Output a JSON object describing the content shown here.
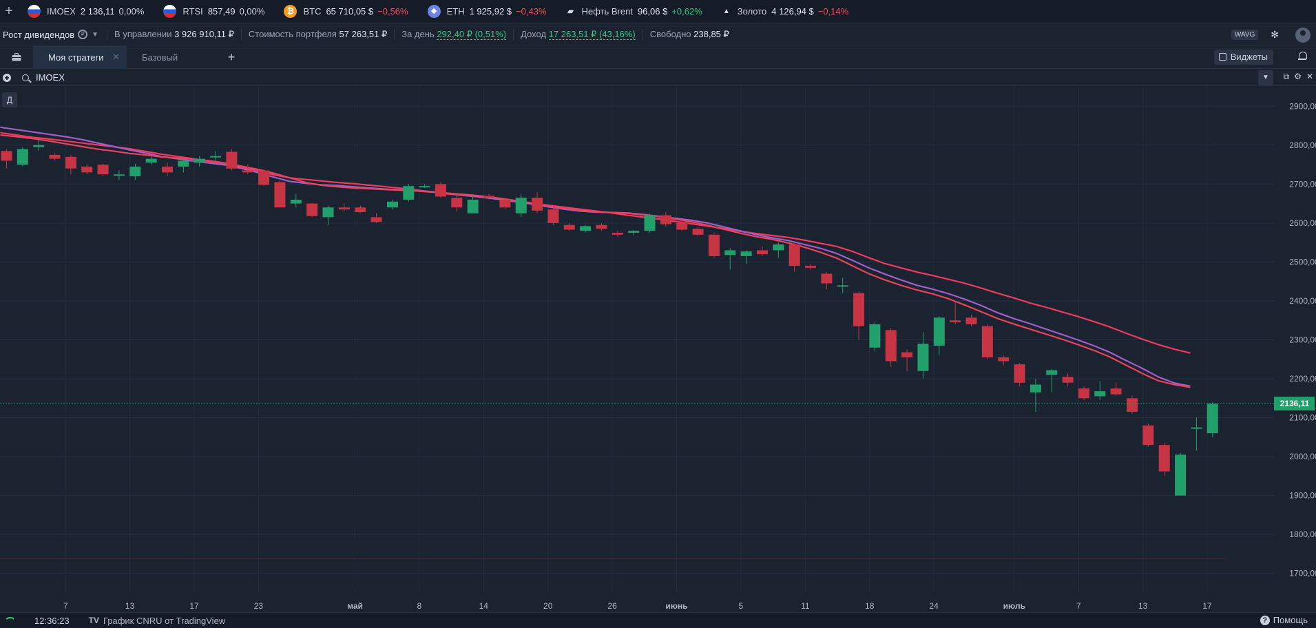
{
  "tickers": [
    {
      "icon": "flag-ru",
      "name": "IMOEX",
      "price": "2 136,11",
      "change": "0,00%",
      "dir": "neu"
    },
    {
      "icon": "flag-ru",
      "name": "RTSI",
      "price": "857,49",
      "change": "0,00%",
      "dir": "neu"
    },
    {
      "icon": "btc",
      "name": "BTC",
      "price": "65 710,05 $",
      "change": "−0,56%",
      "dir": "neg"
    },
    {
      "icon": "eth",
      "name": "ETH",
      "price": "1 925,92 $",
      "change": "−0,43%",
      "dir": "neg"
    },
    {
      "icon": "oil",
      "name": "Нефть Brent",
      "price": "96,06 $",
      "change": "+0,62%",
      "dir": "pos"
    },
    {
      "icon": "gold",
      "name": "Золото",
      "price": "4 126,94 $",
      "change": "−0,14%",
      "dir": "neg"
    }
  ],
  "portfolio": {
    "strategy_name": "Рост дивидендов",
    "managed_label": "В управлении",
    "managed_value": "3 926 910,11 ₽",
    "cost_label": "Стоимость портфеля",
    "cost_value": "57 263,51 ₽",
    "day_label": "За день",
    "day_value": "292,40 ₽ (0,51%)",
    "income_label": "Доход",
    "income_value": "17 263,51 ₽ (43,16%)",
    "free_label": "Свободно",
    "free_value": "238,85 ₽",
    "wavg_label": "WAVG"
  },
  "tabs": [
    {
      "label": "Моя стратеги",
      "active": true
    },
    {
      "label": "Базовый",
      "active": false
    }
  ],
  "widgets_label": "Виджеты",
  "search": {
    "symbol": "IMOEX"
  },
  "period_label": "Д",
  "chart_data": {
    "type": "candlestick",
    "symbol": "IMOEX",
    "last_price_label": "2136,11",
    "last_price": 2136.11,
    "ylim": [
      1650,
      2950
    ],
    "y_ticks": [
      {
        "value": 1700,
        "label": "1700,00"
      },
      {
        "value": 1800,
        "label": "1800,00"
      },
      {
        "value": 1900,
        "label": "1900,00"
      },
      {
        "value": 2000,
        "label": "2000,00"
      },
      {
        "value": 2100,
        "label": "2100,00"
      },
      {
        "value": 2200,
        "label": "2200,00"
      },
      {
        "value": 2300,
        "label": "2300,00"
      },
      {
        "value": 2400,
        "label": "2400,00"
      },
      {
        "value": 2500,
        "label": "2500,00"
      },
      {
        "value": 2600,
        "label": "2600,00"
      },
      {
        "value": 2700,
        "label": "2700,00"
      },
      {
        "value": 2800,
        "label": "2800,00"
      },
      {
        "value": 2900,
        "label": "2900,00"
      }
    ],
    "x_ticks": [
      {
        "index": 2,
        "label": "7"
      },
      {
        "index": 6,
        "label": "13"
      },
      {
        "index": 10,
        "label": "17"
      },
      {
        "index": 14,
        "label": "23"
      },
      {
        "index": 20,
        "label": "май"
      },
      {
        "index": 24,
        "label": "8"
      },
      {
        "index": 28,
        "label": "14"
      },
      {
        "index": 32,
        "label": "20"
      },
      {
        "index": 36,
        "label": "26"
      },
      {
        "index": 40,
        "label": "июнь"
      },
      {
        "index": 44,
        "label": "5"
      },
      {
        "index": 48,
        "label": "11"
      },
      {
        "index": 52,
        "label": "18"
      },
      {
        "index": 56,
        "label": "24"
      },
      {
        "index": 61,
        "label": "июль"
      },
      {
        "index": 65,
        "label": "7"
      },
      {
        "index": 69,
        "label": "13"
      },
      {
        "index": 73,
        "label": "17"
      }
    ],
    "candles": [
      [
        2785,
        2790,
        2740,
        2760
      ],
      [
        2750,
        2795,
        2745,
        2790
      ],
      [
        2795,
        2815,
        2785,
        2800
      ],
      [
        2775,
        2780,
        2760,
        2765
      ],
      [
        2770,
        2775,
        2725,
        2740
      ],
      [
        2745,
        2750,
        2725,
        2730
      ],
      [
        2750,
        2752,
        2720,
        2725
      ],
      [
        2725,
        2735,
        2710,
        2725
      ],
      [
        2720,
        2752,
        2710,
        2745
      ],
      [
        2755,
        2770,
        2750,
        2765
      ],
      [
        2745,
        2755,
        2720,
        2730
      ],
      [
        2745,
        2768,
        2730,
        2760
      ],
      [
        2755,
        2772,
        2745,
        2765
      ],
      [
        2770,
        2785,
        2760,
        2772
      ],
      [
        2783,
        2790,
        2735,
        2740
      ],
      [
        2735,
        2750,
        2725,
        2730
      ],
      [
        2735,
        2738,
        2695,
        2698
      ],
      [
        2705,
        2710,
        2640,
        2640
      ],
      [
        2650,
        2675,
        2640,
        2660
      ],
      [
        2650,
        2652,
        2615,
        2618
      ],
      [
        2615,
        2645,
        2595,
        2640
      ],
      [
        2640,
        2650,
        2630,
        2635
      ],
      [
        2640,
        2645,
        2625,
        2628
      ],
      [
        2615,
        2625,
        2600,
        2603
      ],
      [
        2640,
        2660,
        2635,
        2655
      ],
      [
        2660,
        2700,
        2655,
        2695
      ],
      [
        2695,
        2700,
        2690,
        2695
      ],
      [
        2700,
        2705,
        2665,
        2668
      ],
      [
        2665,
        2670,
        2630,
        2640
      ],
      [
        2625,
        2675,
        2625,
        2660
      ],
      [
        2670,
        2675,
        2660,
        2665
      ],
      [
        2660,
        2665,
        2635,
        2640
      ],
      [
        2625,
        2675,
        2615,
        2665
      ],
      [
        2665,
        2680,
        2625,
        2632
      ],
      [
        2635,
        2640,
        2595,
        2600
      ],
      [
        2595,
        2600,
        2580,
        2583
      ],
      [
        2580,
        2595,
        2575,
        2592
      ],
      [
        2595,
        2600,
        2580,
        2585
      ],
      [
        2575,
        2580,
        2565,
        2570
      ],
      [
        2575,
        2582,
        2568,
        2580
      ],
      [
        2580,
        2625,
        2575,
        2620
      ],
      [
        2620,
        2628,
        2590,
        2597
      ],
      [
        2600,
        2605,
        2580,
        2583
      ],
      [
        2585,
        2590,
        2565,
        2570
      ],
      [
        2570,
        2575,
        2510,
        2515
      ],
      [
        2518,
        2535,
        2480,
        2530
      ],
      [
        2515,
        2530,
        2495,
        2527
      ],
      [
        2530,
        2540,
        2515,
        2520
      ],
      [
        2530,
        2550,
        2510,
        2545
      ],
      [
        2545,
        2550,
        2475,
        2490
      ],
      [
        2490,
        2495,
        2480,
        2485
      ],
      [
        2470,
        2475,
        2430,
        2445
      ],
      [
        2440,
        2460,
        2420,
        2440
      ],
      [
        2420,
        2425,
        2300,
        2335
      ],
      [
        2280,
        2345,
        2270,
        2340
      ],
      [
        2325,
        2330,
        2230,
        2245
      ],
      [
        2268,
        2275,
        2220,
        2255
      ],
      [
        2220,
        2320,
        2200,
        2290
      ],
      [
        2285,
        2360,
        2260,
        2357
      ],
      [
        2350,
        2400,
        2340,
        2345
      ],
      [
        2357,
        2365,
        2335,
        2340
      ],
      [
        2335,
        2340,
        2250,
        2255
      ],
      [
        2255,
        2260,
        2235,
        2245
      ],
      [
        2237,
        2240,
        2180,
        2190
      ],
      [
        2165,
        2200,
        2115,
        2185
      ],
      [
        2210,
        2225,
        2165,
        2222
      ],
      [
        2205,
        2215,
        2180,
        2190
      ],
      [
        2175,
        2180,
        2145,
        2150
      ],
      [
        2155,
        2195,
        2145,
        2168
      ],
      [
        2175,
        2190,
        2155,
        2160
      ],
      [
        2150,
        2158,
        2110,
        2115
      ],
      [
        2080,
        2085,
        2025,
        2030
      ],
      [
        2030,
        2035,
        1950,
        1962
      ],
      [
        1900,
        2010,
        1900,
        2005
      ],
      [
        2075,
        2100,
        2015,
        2075
      ],
      [
        2060,
        2140,
        2050,
        2136.11
      ]
    ],
    "ma_series": [
      {
        "color": "#ee3a5f",
        "values": [
          2832,
          2826,
          2820,
          2816,
          2811,
          2806,
          2801,
          2796,
          2791,
          2784,
          2777,
          2771,
          2765,
          2758,
          2751,
          2743,
          2734,
          2724,
          2716,
          2712,
          2708,
          2704,
          2701,
          2697,
          2693,
          2689,
          2684,
          2679,
          2674,
          2670,
          2666,
          2661,
          2656,
          2651,
          2646,
          2641,
          2636,
          2631,
          2626,
          2620,
          2615,
          2610,
          2604,
          2598,
          2592,
          2586,
          2579,
          2573,
          2568,
          2563,
          2556,
          2548,
          2540,
          2527,
          2511,
          2496,
          2485,
          2474,
          2465,
          2455,
          2445,
          2433,
          2420,
          2408,
          2395,
          2384,
          2372,
          2360,
          2347,
          2333,
          2317,
          2302,
          2288,
          2276,
          2266
        ]
      },
      {
        "color": "#9f5fc6",
        "values": [
          2846,
          2840,
          2834,
          2828,
          2822,
          2815,
          2806,
          2797,
          2788,
          2780,
          2771,
          2765,
          2759,
          2754,
          2749,
          2740,
          2730,
          2718,
          2707,
          2702,
          2698,
          2696,
          2693,
          2690,
          2687,
          2685,
          2683,
          2680,
          2676,
          2671,
          2666,
          2661,
          2655,
          2649,
          2642,
          2636,
          2631,
          2628,
          2627,
          2626,
          2622,
          2617,
          2612,
          2607,
          2600,
          2590,
          2580,
          2570,
          2562,
          2555,
          2545,
          2535,
          2522,
          2504,
          2485,
          2469,
          2454,
          2440,
          2430,
          2418,
          2404,
          2388,
          2370,
          2355,
          2342,
          2328,
          2314,
          2300,
          2285,
          2268,
          2247,
          2227,
          2205,
          2189,
          2181
        ]
      },
      {
        "color": "#e8445c",
        "values": [
          2826,
          2822,
          2817,
          2811,
          2804,
          2797,
          2790,
          2785,
          2779,
          2775,
          2770,
          2767,
          2764,
          2760,
          2754,
          2746,
          2738,
          2728,
          2716,
          2704,
          2697,
          2693,
          2690,
          2688,
          2686,
          2684,
          2682,
          2679,
          2676,
          2673,
          2669,
          2664,
          2658,
          2652,
          2645,
          2638,
          2633,
          2629,
          2627,
          2625,
          2621,
          2616,
          2610,
          2603,
          2594,
          2584,
          2574,
          2565,
          2558,
          2549,
          2538,
          2525,
          2510,
          2490,
          2470,
          2454,
          2440,
          2428,
          2418,
          2405,
          2389,
          2372,
          2355,
          2341,
          2328,
          2315,
          2302,
          2288,
          2273,
          2256,
          2235,
          2214,
          2195,
          2185,
          2178
        ]
      }
    ]
  },
  "footer": {
    "time": "12:36:23",
    "tv_logo": "TV",
    "tv_text": "График CNRU от TradingView",
    "help_label": "Помощь"
  }
}
